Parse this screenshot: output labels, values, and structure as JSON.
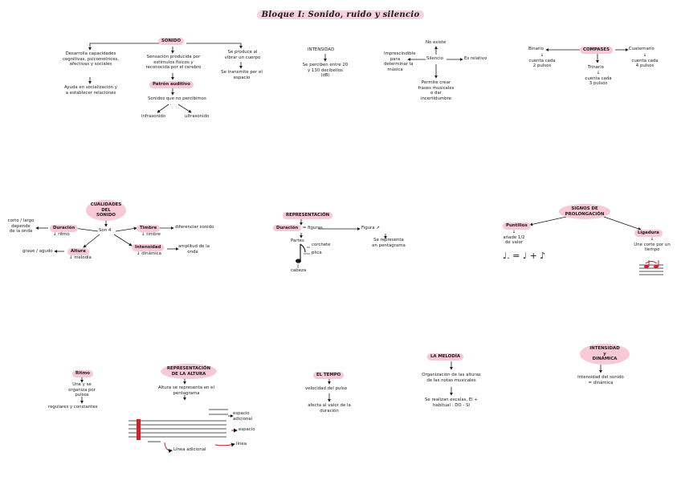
{
  "title": "Bloque I: Sonido, ruido y silencio",
  "sonido": {
    "head": "SONIDO",
    "b1": [
      "Desarrolla capacidades",
      "cognitivas, psicomotrices,",
      "afectivas y sociales"
    ],
    "b1b": [
      "Ayuda en socialización y",
      "a establecer relaciones"
    ],
    "b2": [
      "Sensación producida por",
      "estímulos físicos y",
      "reconocida por el cerebro"
    ],
    "b2b": "Patrón auditivo",
    "b2c": "Sonidos que no percibimos",
    "b2d": "infrasonido",
    "b2e": "ultrasonido",
    "b3": [
      "Se produce al",
      "vibrar un cuerpo"
    ],
    "b3b": [
      "Se transmite por el",
      "espacio"
    ]
  },
  "intensidad1": {
    "head": "INTENSIDAD",
    "body": [
      "Se perciben entre 20",
      "y 130 decibelios",
      "(dB)"
    ]
  },
  "silencio": {
    "left": [
      "Imprescindible",
      "para",
      "determinar la",
      "música"
    ],
    "top": "No existe",
    "center": "Silencio",
    "right": "Es relativo",
    "bottom": [
      "Permite crear",
      "frases musicales",
      "o dar",
      "incertidumbre"
    ]
  },
  "compases": {
    "center": "COMPASES",
    "left": "Binario",
    "left_b": [
      "cuenta cada",
      "2 pulsos"
    ],
    "mid": "Trinario",
    "mid_b": [
      "cuenta cada",
      "3 pulsos"
    ],
    "right": "Cuaternario",
    "right_b": [
      "cuenta cada",
      "4 pulsos"
    ]
  },
  "cualidades": {
    "head": [
      "CUALIDADES",
      "DEL",
      "SONIDO"
    ],
    "center": "Son 4",
    "duracion": "Duración",
    "duracion_b": "ritmo",
    "duracion_l": [
      "corto / largo",
      "depende",
      "de la onda"
    ],
    "altura": "Altura",
    "altura_b": "melodía",
    "altura_l": "grave / agudo",
    "timbre": "Timbre",
    "timbre_b": "timbre",
    "timbre_r": "diferenciar sonido",
    "intensidad": "Intensidad",
    "intensidad_b": "dinámica",
    "intensidad_r": [
      "amplitud de la",
      "onda"
    ]
  },
  "representacion": {
    "head": "REPRESENTACIÓN",
    "dur": "Duración",
    "eq": "= figuras",
    "figura": "Figura",
    "figura_r": [
      "Se representa",
      "en pentagrama"
    ],
    "plica_top": "Partes",
    "corchete": "corchete",
    "plica": "plica",
    "cabeza": "cabeza"
  },
  "prolongacion": {
    "head": [
      "SIGNOS DE",
      "PROLONGACIÓN"
    ],
    "left": "Puntillos",
    "left_b": [
      "añade 1/2",
      "de valor"
    ],
    "formula": "♩. = ♩ + ♪",
    "right": "Ligadura",
    "right_b": [
      "Une corte por un",
      "tiempo"
    ]
  },
  "ritmo": {
    "head": "Ritmo",
    "b": [
      "Une y se",
      "organiza por",
      "pulsos"
    ],
    "c": "regulares y constantes"
  },
  "altura": {
    "head": [
      "REPRESENTACIÓN",
      "DE LA ALTURA"
    ],
    "b": [
      "Altura se representa en el",
      "pentagrama"
    ],
    "esp_ad": [
      "espacio",
      "adicional"
    ],
    "espacio": "espacio",
    "linea": "línea",
    "linea_ad": "Línea adicional"
  },
  "tempo": {
    "head": "EL TEMPO",
    "b": "velocidad del pulso",
    "c": [
      "afecta al valor de la",
      "duración"
    ]
  },
  "melodia": {
    "head": "LA MELODÍA",
    "b": [
      "Organización de las alturas",
      "de las notas musicales"
    ],
    "c": [
      "Se realizan escalas, El +",
      "habitual : DO - SI"
    ]
  },
  "intensidad2": {
    "head": [
      "INTENSIDAD",
      "y",
      "DINÁMICA"
    ],
    "b": [
      "Intensidad del sonido",
      "= dinámica"
    ]
  },
  "colors": {
    "highlight": "#f7c8d6",
    "accent_red": "#d0202a",
    "ink": "#1a1a1a"
  }
}
